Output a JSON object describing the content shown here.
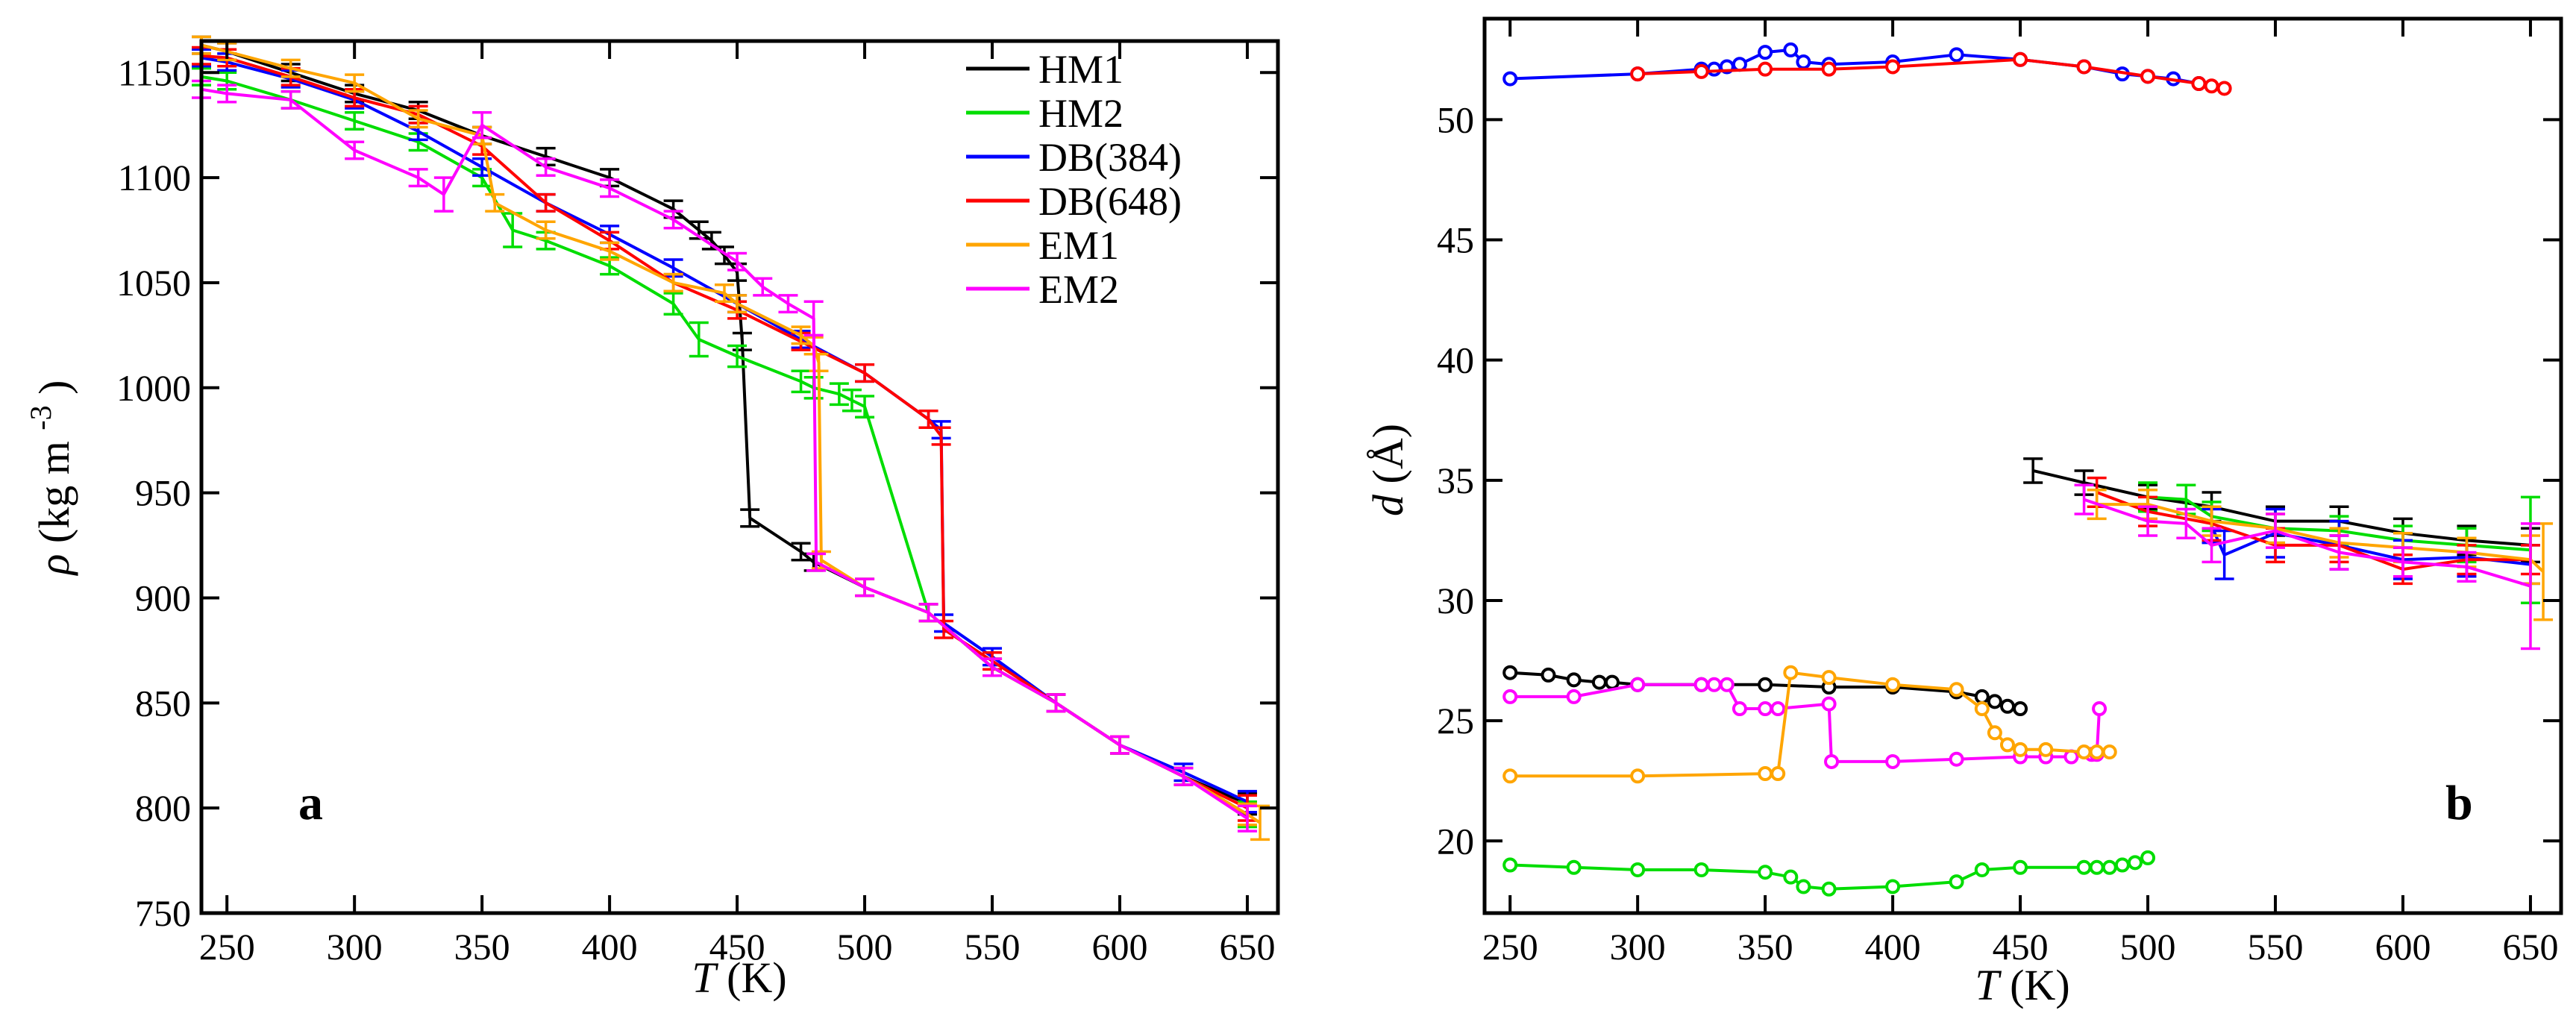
{
  "chart_data": [
    {
      "id": "a",
      "type": "line",
      "panel_label": "a",
      "xlabel_symbol": "T",
      "xlabel_unit": "(K)",
      "ylabel_symbol": "ρ",
      "ylabel_unit": "(kg m",
      "ylabel_exp": "-3",
      "ylabel_close": ")",
      "xlim": [
        240,
        662
      ],
      "ylim": [
        750,
        1165
      ],
      "xticks": [
        250,
        300,
        350,
        400,
        450,
        500,
        550,
        600,
        650
      ],
      "yticks": [
        750,
        800,
        850,
        900,
        950,
        1000,
        1050,
        1100,
        1150
      ],
      "legend": [
        "HM1",
        "HM2",
        "DB(384)",
        "DB(648)",
        "EM1",
        "EM2"
      ],
      "series": [
        {
          "name": "HM1",
          "color": "#000000",
          "x": [
            240,
            250,
            275,
            300,
            325,
            350,
            375,
            400,
            425,
            435,
            440,
            445,
            450,
            452,
            455,
            475,
            480,
            500,
            525,
            550,
            575,
            600,
            625,
            650
          ],
          "y": [
            1163,
            1160,
            1150,
            1140,
            1132,
            1120,
            1110,
            1100,
            1085,
            1075,
            1070,
            1063,
            1055,
            1022,
            938,
            922,
            917,
            905,
            893,
            867,
            850,
            830,
            815,
            802
          ],
          "err": [
            4,
            4,
            4,
            4,
            4,
            4,
            4,
            4,
            4,
            4,
            4,
            4,
            4,
            4,
            4,
            4,
            4,
            4,
            4,
            4,
            4,
            4,
            4,
            5
          ]
        },
        {
          "name": "HM2",
          "color": "#00dd00",
          "x": [
            240,
            250,
            275,
            300,
            325,
            350,
            362,
            375,
            400,
            425,
            435,
            450,
            475,
            480,
            490,
            495,
            500,
            525,
            550,
            575,
            600,
            625,
            650
          ],
          "y": [
            1148,
            1146,
            1137,
            1127,
            1117,
            1100,
            1075,
            1070,
            1058,
            1040,
            1023,
            1015,
            1003,
            1000,
            997,
            994,
            991,
            893,
            867,
            850,
            830,
            815,
            797
          ],
          "err": [
            4,
            4,
            4,
            4,
            4,
            4,
            8,
            4,
            4,
            5,
            8,
            5,
            5,
            5,
            5,
            5,
            5,
            4,
            4,
            4,
            4,
            4,
            6
          ]
        },
        {
          "name": "DB(384)",
          "color": "#0000ff",
          "x": [
            240,
            250,
            275,
            300,
            325,
            350,
            375,
            400,
            425,
            450,
            475,
            500,
            525,
            530,
            531,
            550,
            575,
            600,
            625,
            650
          ],
          "y": [
            1157,
            1155,
            1147,
            1137,
            1122,
            1105,
            1088,
            1073,
            1057,
            1040,
            1023,
            1007,
            985,
            980,
            888,
            872,
            850,
            830,
            817,
            803
          ],
          "err": [
            4,
            4,
            4,
            4,
            4,
            4,
            4,
            4,
            4,
            4,
            4,
            4,
            4,
            4,
            4,
            4,
            4,
            4,
            4,
            5
          ]
        },
        {
          "name": "DB(648)",
          "color": "#ff0000",
          "x": [
            240,
            250,
            275,
            300,
            325,
            350,
            375,
            400,
            425,
            450,
            475,
            500,
            525,
            530,
            531,
            550,
            575,
            600,
            625,
            650
          ],
          "y": [
            1158,
            1157,
            1148,
            1138,
            1130,
            1115,
            1088,
            1070,
            1050,
            1037,
            1022,
            1007,
            985,
            977,
            885,
            870,
            850,
            830,
            815,
            800
          ],
          "err": [
            4,
            4,
            4,
            4,
            4,
            4,
            4,
            4,
            4,
            4,
            4,
            4,
            4,
            4,
            4,
            4,
            4,
            4,
            4,
            6
          ]
        },
        {
          "name": "EM1",
          "color": "#ffa500",
          "x": [
            240,
            250,
            275,
            300,
            325,
            350,
            355,
            375,
            400,
            425,
            445,
            450,
            475,
            480,
            482,
            483,
            500,
            525,
            550,
            575,
            600,
            625,
            650,
            655
          ],
          "y": [
            1163,
            1160,
            1152,
            1145,
            1128,
            1120,
            1088,
            1075,
            1065,
            1050,
            1045,
            1040,
            1025,
            1020,
            1012,
            918,
            905,
            893,
            867,
            850,
            830,
            815,
            797,
            793
          ],
          "err": [
            4,
            4,
            4,
            4,
            4,
            4,
            4,
            4,
            4,
            4,
            4,
            4,
            4,
            4,
            4,
            4,
            4,
            4,
            4,
            4,
            4,
            4,
            5,
            8
          ]
        },
        {
          "name": "EM2",
          "color": "#ff00ff",
          "x": [
            240,
            250,
            275,
            300,
            325,
            335,
            350,
            375,
            400,
            425,
            450,
            460,
            470,
            480,
            481,
            500,
            525,
            550,
            575,
            600,
            625,
            650
          ],
          "y": [
            1142,
            1140,
            1137,
            1113,
            1100,
            1092,
            1125,
            1105,
            1095,
            1080,
            1060,
            1048,
            1040,
            1033,
            917,
            905,
            893,
            867,
            850,
            830,
            815,
            795
          ],
          "err": [
            4,
            4,
            4,
            4,
            4,
            8,
            6,
            4,
            4,
            4,
            4,
            4,
            4,
            8,
            4,
            4,
            4,
            4,
            4,
            4,
            4,
            6
          ]
        }
      ]
    },
    {
      "id": "b",
      "type": "line",
      "panel_label": "b",
      "xlabel_symbol": "T",
      "xlabel_unit": "(K)",
      "ylabel_symbol": "d",
      "ylabel_unit": "(Å)",
      "xlim": [
        240,
        662
      ],
      "ylim": [
        17,
        54.2
      ],
      "xticks": [
        250,
        300,
        350,
        400,
        450,
        500,
        550,
        600,
        650
      ],
      "yticks": [
        20,
        25,
        30,
        35,
        40,
        45,
        50
      ],
      "series": [
        {
          "name": "DB(384) low-T",
          "color": "#0000ff",
          "markers": true,
          "x": [
            250,
            300,
            325,
            330,
            335,
            340,
            350,
            360,
            365,
            375,
            400,
            425,
            450,
            475,
            490,
            500,
            510,
            520
          ],
          "y": [
            51.7,
            51.9,
            52.1,
            52.1,
            52.2,
            52.3,
            52.8,
            52.9,
            52.4,
            52.3,
            52.4,
            52.7,
            52.5,
            52.2,
            51.9,
            51.8,
            51.7,
            51.5
          ]
        },
        {
          "name": "DB(648) low-T",
          "color": "#ff0000",
          "markers": true,
          "x": [
            300,
            325,
            350,
            375,
            400,
            450,
            475,
            500,
            520,
            525,
            530
          ],
          "y": [
            51.9,
            52.0,
            52.1,
            52.1,
            52.2,
            52.5,
            52.2,
            51.8,
            51.5,
            51.4,
            51.3
          ]
        },
        {
          "name": "HM1 low-T",
          "color": "#000000",
          "markers": true,
          "x": [
            250,
            265,
            275,
            285,
            290,
            300,
            325,
            350,
            375,
            400,
            425,
            435,
            440,
            445,
            450
          ],
          "y": [
            27.0,
            26.9,
            26.7,
            26.6,
            26.6,
            26.5,
            26.5,
            26.5,
            26.4,
            26.4,
            26.2,
            26.0,
            25.8,
            25.6,
            25.5
          ]
        },
        {
          "name": "EM2 low-T",
          "color": "#ff00ff",
          "markers": true,
          "x": [
            250,
            275,
            300,
            325,
            330,
            335,
            340,
            350,
            355,
            375,
            376,
            400,
            425,
            450,
            460,
            470,
            478,
            480,
            481
          ],
          "y": [
            26.0,
            26.0,
            26.5,
            26.5,
            26.5,
            26.5,
            25.5,
            25.5,
            25.5,
            25.7,
            23.3,
            23.3,
            23.4,
            23.5,
            23.5,
            23.5,
            23.6,
            23.6,
            25.5
          ]
        },
        {
          "name": "EM1 low-T",
          "color": "#ffa500",
          "markers": true,
          "x": [
            250,
            300,
            350,
            355,
            360,
            375,
            400,
            425,
            435,
            440,
            445,
            450,
            460,
            475,
            480,
            485
          ],
          "y": [
            22.7,
            22.7,
            22.8,
            22.8,
            27.0,
            26.8,
            26.5,
            26.3,
            25.5,
            24.5,
            24.0,
            23.8,
            23.8,
            23.7,
            23.7,
            23.7
          ]
        },
        {
          "name": "HM2 low-T",
          "color": "#00dd00",
          "markers": true,
          "x": [
            250,
            275,
            300,
            325,
            350,
            360,
            365,
            375,
            400,
            425,
            435,
            450,
            475,
            480,
            485,
            490,
            495,
            500
          ],
          "y": [
            19.0,
            18.9,
            18.8,
            18.8,
            18.7,
            18.5,
            18.1,
            18.0,
            18.1,
            18.3,
            18.8,
            18.9,
            18.9,
            18.9,
            18.9,
            19.0,
            19.1,
            19.3
          ]
        },
        {
          "name": "HM1 high-T",
          "color": "#000000",
          "markers": false,
          "x": [
            455,
            475,
            500,
            525,
            550,
            575,
            600,
            625,
            650
          ],
          "y": [
            35.4,
            34.9,
            34.3,
            33.9,
            33.3,
            33.3,
            32.8,
            32.5,
            32.3
          ],
          "err": [
            0.5,
            0.5,
            0.5,
            0.6,
            0.6,
            0.6,
            0.6,
            0.6,
            0.7
          ]
        },
        {
          "name": "HM2 high-T",
          "color": "#00dd00",
          "markers": false,
          "x": [
            500,
            515,
            525,
            550,
            575,
            600,
            625,
            650
          ],
          "y": [
            34.3,
            34.2,
            33.5,
            33.0,
            32.9,
            32.5,
            32.3,
            32.1
          ],
          "err": [
            0.6,
            0.6,
            0.6,
            0.6,
            0.6,
            0.6,
            0.7,
            2.2
          ]
        },
        {
          "name": "DB(384) high-T",
          "color": "#0000ff",
          "markers": false,
          "x": [
            525,
            530,
            550,
            575,
            600,
            625,
            650
          ],
          "y": [
            33.1,
            31.9,
            32.8,
            32.3,
            31.7,
            31.8,
            31.5
          ],
          "err": [
            0.7,
            1.0,
            1.0,
            1.0,
            0.8,
            0.8,
            0.8
          ]
        },
        {
          "name": "DB(648) high-T",
          "color": "#ff0000",
          "markers": false,
          "x": [
            480,
            500,
            525,
            550,
            575,
            600,
            625,
            650
          ],
          "y": [
            34.5,
            33.7,
            33.2,
            32.3,
            32.3,
            31.3,
            31.7,
            31.7
          ],
          "err": [
            0.6,
            0.6,
            0.7,
            0.7,
            0.7,
            0.6,
            0.6,
            0.6
          ]
        },
        {
          "name": "EM1 high-T",
          "color": "#ffa500",
          "markers": false,
          "x": [
            480,
            500,
            525,
            550,
            575,
            600,
            625,
            650,
            655
          ],
          "y": [
            34.0,
            34.0,
            33.3,
            33.0,
            32.4,
            32.2,
            32.0,
            31.7,
            31.2
          ],
          "err": [
            0.6,
            0.6,
            0.6,
            0.6,
            0.6,
            0.6,
            0.6,
            1.0,
            2.0
          ]
        },
        {
          "name": "EM2 high-T",
          "color": "#ff00ff",
          "markers": false,
          "x": [
            475,
            500,
            515,
            525,
            550,
            575,
            600,
            625,
            650
          ],
          "y": [
            34.2,
            33.3,
            33.2,
            32.3,
            32.9,
            32.0,
            31.6,
            31.4,
            30.6
          ],
          "err": [
            0.6,
            0.6,
            0.6,
            0.7,
            0.7,
            0.7,
            0.6,
            0.6,
            2.6
          ]
        }
      ]
    }
  ]
}
